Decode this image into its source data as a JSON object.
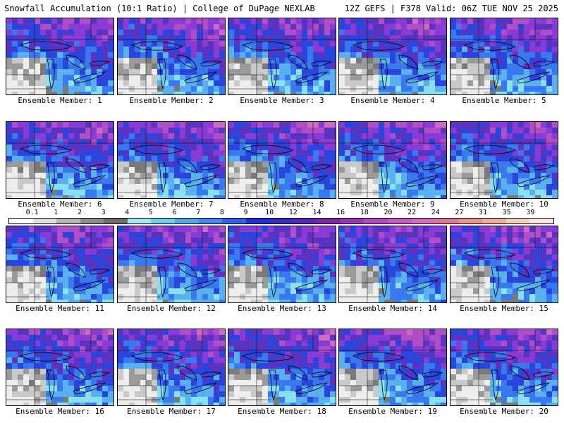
{
  "header": {
    "left": "Snowfall Accumulation (10:1 Ratio) | College of DuPage NEXLAB",
    "right": "12Z GEFS | F378 Valid: 06Z TUE NOV 25 2025"
  },
  "colors": {
    "map_gray": "#8c8c8c",
    "map_light": "#d0d0d0",
    "blue": "#3a6df0",
    "purple": "#8a3bd6",
    "magenta": "#c040b8"
  },
  "members": [
    {
      "label": "Ensemble Member: 1"
    },
    {
      "label": "Ensemble Member: 2"
    },
    {
      "label": "Ensemble Member: 3"
    },
    {
      "label": "Ensemble Member: 4"
    },
    {
      "label": "Ensemble Member: 5"
    },
    {
      "label": "Ensemble Member: 6"
    },
    {
      "label": "Ensemble Member: 7"
    },
    {
      "label": "Ensemble Member: 8"
    },
    {
      "label": "Ensemble Member: 9"
    },
    {
      "label": "Ensemble Member: 10"
    },
    {
      "label": "Ensemble Member: 11"
    },
    {
      "label": "Ensemble Member: 12"
    },
    {
      "label": "Ensemble Member: 13"
    },
    {
      "label": "Ensemble Member: 14"
    },
    {
      "label": "Ensemble Member: 15"
    },
    {
      "label": "Ensemble Member: 16"
    },
    {
      "label": "Ensemble Member: 17"
    },
    {
      "label": "Ensemble Member: 18"
    },
    {
      "label": "Ensemble Member: 19"
    },
    {
      "label": "Ensemble Member: 20"
    }
  ],
  "legend": {
    "labels": [
      "0.1",
      "1",
      "2",
      "3",
      "4",
      "5",
      "6",
      "7",
      "8",
      "9",
      "10",
      "12",
      "14",
      "16",
      "18",
      "20",
      "22",
      "24",
      "27",
      "31",
      "35",
      "39"
    ],
    "colors": [
      "#ffffff",
      "#e2e2e2",
      "#b7b7b7",
      "#8d8d8d",
      "#6f6f6f",
      "#a8e8f0",
      "#6fd0ea",
      "#55a8e8",
      "#4a86ea",
      "#3a5fe8",
      "#2030d8",
      "#3a2fb8",
      "#5a2ab0",
      "#7a2aa8",
      "#9a38b8",
      "#b64ac6",
      "#ca5ac8",
      "#d86cc0",
      "#e07898",
      "#e89490",
      "#f0b0a0",
      "#f6d0c0",
      "#fbe8e0"
    ]
  }
}
